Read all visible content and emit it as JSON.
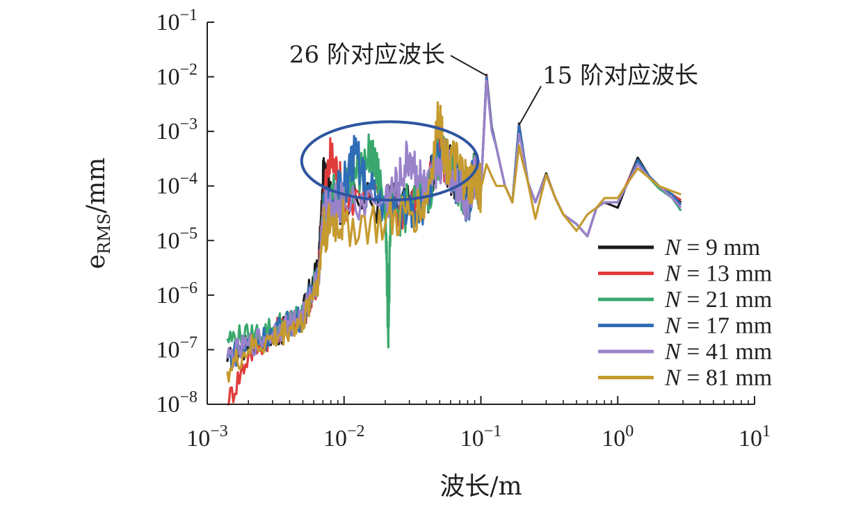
{
  "chart_data": {
    "type": "line",
    "xlabel": "波长/m",
    "ylabel_main": "e",
    "ylabel_sub": "RMS",
    "ylabel_unit": "/mm",
    "x_scale": "log",
    "y_scale": "log",
    "xlim": [
      0.001,
      10
    ],
    "ylim": [
      1e-08,
      0.1
    ],
    "grid": false,
    "legend_position": "bottom-right",
    "x_ticks": [
      {
        "value": 0.001,
        "base": "10",
        "exp": "−3"
      },
      {
        "value": 0.01,
        "base": "10",
        "exp": "−2"
      },
      {
        "value": 0.1,
        "base": "10",
        "exp": "−1"
      },
      {
        "value": 1,
        "base": "10",
        "exp": "0"
      },
      {
        "value": 10,
        "base": "10",
        "exp": "1"
      }
    ],
    "y_ticks": [
      {
        "value": 0.1,
        "base": "10",
        "exp": "−1"
      },
      {
        "value": 0.01,
        "base": "10",
        "exp": "−2"
      },
      {
        "value": 0.001,
        "base": "10",
        "exp": "−3"
      },
      {
        "value": 0.0001,
        "base": "10",
        "exp": "−4"
      },
      {
        "value": 1e-05,
        "base": "10",
        "exp": "−5"
      },
      {
        "value": 1e-06,
        "base": "10",
        "exp": "−6"
      },
      {
        "value": 1e-07,
        "base": "10",
        "exp": "−7"
      },
      {
        "value": 1e-08,
        "base": "10",
        "exp": "−8"
      }
    ],
    "annotations": [
      {
        "text": "26 阶对应波长",
        "x": 0.11,
        "y": 0.0105
      },
      {
        "text": "15 阶对应波长",
        "x": 0.19,
        "y": 0.0013
      }
    ],
    "highlight_ellipse": {
      "color": "#2e55a0",
      "x_range": [
        0.0049,
        0.095
      ],
      "y_range": [
        5.5e-05,
        0.0015
      ]
    },
    "series": [
      {
        "name": "N = 9 mm",
        "legend_var": "N",
        "legend_rest": " = 9 mm",
        "color": "#1a1a1a",
        "x_start": 0.0014,
        "x": [
          0.0014,
          0.002,
          0.003,
          0.004,
          0.005,
          0.006,
          0.0065,
          0.007,
          0.0075,
          0.008,
          0.01,
          0.02,
          0.03,
          0.04,
          0.05,
          0.055,
          0.06,
          0.07,
          0.08,
          0.09,
          0.1,
          0.11,
          0.12,
          0.13,
          0.15,
          0.17,
          0.19,
          0.2,
          0.22,
          0.25,
          0.3,
          0.35,
          0.4,
          0.5,
          0.6,
          0.7,
          0.8,
          1.0,
          1.2,
          1.4,
          1.7,
          2.0,
          2.5,
          2.9
        ],
        "y": [
          6e-08,
          1.2e-07,
          1.8e-07,
          2.5e-07,
          5e-07,
          2e-06,
          3e-06,
          0.0001,
          0.00025,
          4e-05,
          6e-05,
          5e-05,
          4e-05,
          7e-05,
          0.0005,
          0.0003,
          0.0002,
          0.0001,
          5e-05,
          0.0002,
          8e-05,
          0.0108,
          0.0012,
          0.0005,
          0.0001,
          5e-05,
          0.0014,
          0.0006,
          0.00012,
          5e-05,
          0.00017,
          6e-05,
          3e-05,
          2e-05,
          1.2e-05,
          4e-05,
          5e-05,
          4e-05,
          0.00013,
          0.00033,
          0.00015,
          0.0001,
          7e-05,
          5e-05
        ]
      },
      {
        "name": "N = 13 mm",
        "legend_var": "N",
        "legend_rest": " = 13 mm",
        "color": "#e03c3c",
        "x_start": 0.0014,
        "x": [
          0.0014,
          0.002,
          0.003,
          0.004,
          0.005,
          0.006,
          0.0065,
          0.007,
          0.008,
          0.009,
          0.01,
          0.02,
          0.03,
          0.04,
          0.05,
          0.06,
          0.07,
          0.08,
          0.09,
          0.1,
          0.11,
          0.12,
          0.13,
          0.15,
          0.17,
          0.19,
          0.2,
          0.22,
          0.25,
          0.3,
          0.35,
          0.4,
          0.5,
          0.6,
          0.7,
          0.8,
          1.0,
          1.2,
          1.4,
          1.7,
          2.0,
          2.5,
          2.9
        ],
        "y": [
          1e-08,
          8e-08,
          2e-07,
          3e-07,
          4e-07,
          1e-06,
          2e-06,
          5e-05,
          0.00035,
          0.00015,
          6e-05,
          5e-05,
          4e-05,
          6e-05,
          0.0004,
          0.0002,
          0.0001,
          5e-05,
          0.0002,
          8e-05,
          0.0102,
          0.0011,
          0.0005,
          0.0001,
          5e-05,
          0.0013,
          0.0006,
          0.00012,
          5e-05,
          0.00016,
          6e-05,
          3e-05,
          2e-05,
          1.2e-05,
          4e-05,
          5e-05,
          5e-05,
          0.00013,
          0.0003,
          0.00015,
          0.0001,
          7e-05,
          5.5e-05
        ]
      },
      {
        "name": "N = 21 mm",
        "legend_var": "N",
        "legend_rest": " = 21 mm",
        "color": "#3aa86e",
        "x_start": 0.0014,
        "x": [
          0.0014,
          0.002,
          0.003,
          0.004,
          0.005,
          0.006,
          0.0065,
          0.007,
          0.008,
          0.01,
          0.015,
          0.017,
          0.02,
          0.021,
          0.022,
          0.03,
          0.04,
          0.05,
          0.06,
          0.07,
          0.08,
          0.09,
          0.1,
          0.11,
          0.12,
          0.13,
          0.15,
          0.17,
          0.19,
          0.2,
          0.22,
          0.25,
          0.3,
          0.35,
          0.4,
          0.5,
          0.6,
          0.7,
          0.8,
          1.0,
          1.2,
          1.4,
          1.7,
          2.0,
          2.5,
          2.9
        ],
        "y": [
          1.6e-07,
          1.7e-07,
          2.5e-07,
          3.5e-07,
          4e-07,
          1.5e-06,
          2.5e-06,
          3e-05,
          6e-05,
          8e-05,
          0.00035,
          0.0002,
          6e-05,
          2e-07,
          3e-05,
          4e-05,
          6e-05,
          0.0004,
          0.0002,
          0.0001,
          5e-05,
          0.0002,
          8e-05,
          0.0095,
          0.0011,
          0.0005,
          0.0001,
          5e-05,
          0.0013,
          0.0006,
          0.00012,
          5e-05,
          0.00016,
          6e-05,
          3e-05,
          2e-05,
          1.2e-05,
          4e-05,
          5e-05,
          5e-05,
          0.00012,
          0.00028,
          0.00014,
          9e-05,
          6e-05,
          3.5e-05
        ]
      },
      {
        "name": "N = 17 mm",
        "legend_var": "N",
        "legend_rest": " = 17 mm",
        "color": "#2e6db5",
        "x_start": 0.0014,
        "x": [
          0.0014,
          0.002,
          0.003,
          0.004,
          0.005,
          0.006,
          0.0065,
          0.007,
          0.008,
          0.01,
          0.012,
          0.015,
          0.02,
          0.03,
          0.04,
          0.05,
          0.06,
          0.07,
          0.08,
          0.09,
          0.1,
          0.11,
          0.12,
          0.13,
          0.15,
          0.17,
          0.19,
          0.2,
          0.22,
          0.25,
          0.3,
          0.35,
          0.4,
          0.5,
          0.6,
          0.7,
          0.8,
          1.0,
          1.2,
          1.4,
          1.7,
          2.0,
          2.5,
          2.9
        ],
        "y": [
          7e-08,
          1.2e-07,
          2e-07,
          3e-07,
          4e-07,
          1.5e-06,
          2e-06,
          3e-05,
          5e-05,
          0.0001,
          0.00038,
          8e-05,
          5e-05,
          4e-05,
          6e-05,
          0.0004,
          0.0002,
          0.0001,
          5e-05,
          0.0002,
          8e-05,
          0.0098,
          0.0011,
          0.0005,
          0.0001,
          5e-05,
          0.0013,
          0.0006,
          0.00012,
          5e-05,
          0.00016,
          6e-05,
          3e-05,
          2e-05,
          1.2e-05,
          4e-05,
          5e-05,
          5e-05,
          0.00012,
          0.0003,
          0.00015,
          0.0001,
          7e-05,
          4.5e-05
        ]
      },
      {
        "name": "N = 41 mm",
        "legend_var": "N",
        "legend_rest": " = 41 mm",
        "color": "#9a82c9",
        "x_start": 0.0014,
        "x": [
          0.0014,
          0.002,
          0.003,
          0.004,
          0.005,
          0.006,
          0.0065,
          0.007,
          0.008,
          0.01,
          0.02,
          0.025,
          0.03,
          0.035,
          0.04,
          0.05,
          0.06,
          0.07,
          0.08,
          0.09,
          0.1,
          0.11,
          0.12,
          0.13,
          0.15,
          0.17,
          0.19,
          0.2,
          0.22,
          0.25,
          0.3,
          0.35,
          0.4,
          0.5,
          0.6,
          0.7,
          0.8,
          1.0,
          1.2,
          1.4,
          1.7,
          2.0,
          2.5,
          2.9
        ],
        "y": [
          7e-08,
          1.2e-07,
          2e-07,
          3e-07,
          4e-07,
          1.5e-06,
          2e-06,
          2.5e-05,
          4e-05,
          5e-05,
          5e-05,
          0.0001,
          0.00035,
          0.00015,
          6e-05,
          0.0003,
          0.0002,
          0.0001,
          5e-05,
          0.0002,
          8e-05,
          0.0085,
          0.001,
          0.0005,
          0.0001,
          5e-05,
          0.0009,
          0.0005,
          0.00012,
          5e-05,
          0.00016,
          6e-05,
          3e-05,
          2e-05,
          1.2e-05,
          4e-05,
          5e-05,
          5e-05,
          0.00012,
          0.00025,
          0.00014,
          0.0001,
          6e-05,
          4e-05
        ]
      },
      {
        "name": "N = 81 mm",
        "legend_var": "N",
        "legend_rest": " = 81 mm",
        "color": "#c59a2f",
        "x_start": 0.0014,
        "x": [
          0.0014,
          0.002,
          0.003,
          0.004,
          0.005,
          0.006,
          0.0065,
          0.007,
          0.008,
          0.01,
          0.02,
          0.03,
          0.04,
          0.05,
          0.055,
          0.06,
          0.07,
          0.08,
          0.09,
          0.1,
          0.11,
          0.12,
          0.13,
          0.15,
          0.17,
          0.19,
          0.2,
          0.22,
          0.25,
          0.3,
          0.35,
          0.4,
          0.5,
          0.6,
          0.7,
          0.8,
          1.0,
          1.2,
          1.4,
          1.7,
          2.0,
          2.5,
          2.9
        ],
        "y": [
          4e-08,
          1e-07,
          1.5e-07,
          2.5e-07,
          3e-07,
          1.3e-06,
          1.8e-06,
          1.5e-05,
          2e-05,
          2e-05,
          2e-05,
          3e-05,
          5e-05,
          0.0021,
          0.0003,
          0.0003,
          0.0002,
          0.0001,
          0.00012,
          9e-05,
          0.00025,
          0.00015,
          0.0001,
          0.0001,
          5e-05,
          0.00055,
          0.0003,
          0.00012,
          2.5e-05,
          0.00016,
          6e-05,
          3e-05,
          1.5e-05,
          3e-05,
          4e-05,
          6e-05,
          6e-05,
          0.00012,
          0.00021,
          0.00014,
          0.0001,
          8e-05,
          7e-05
        ]
      }
    ]
  }
}
